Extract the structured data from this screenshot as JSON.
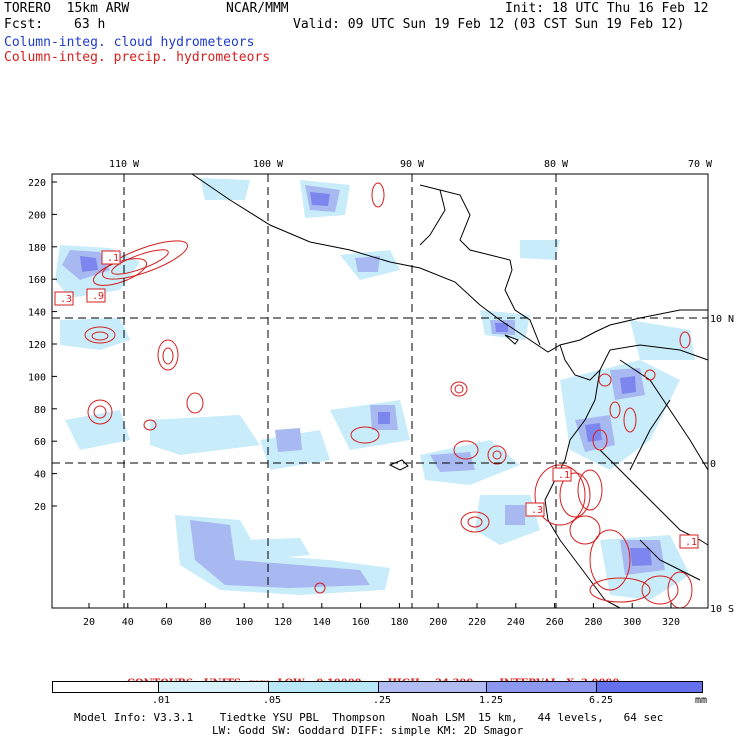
{
  "header": {
    "model": "TORERO  15km ARW",
    "center": "NCAR/MMM",
    "init": "Init: 18 UTC Thu 16 Feb 12",
    "fcst_label": "Fcst:",
    "fcst_value": "63 h",
    "valid": "Valid: 09 UTC Sun 19 Feb 12 (03 CST Sun 19 Feb 12)",
    "field1": "Column-integ. cloud hydrometeors",
    "field2": "Column-integ. precip. hydrometeors"
  },
  "map": {
    "lon_labels": [
      "110 W",
      "100 W",
      "90 W",
      "80 W",
      "70 W"
    ],
    "lat_labels": [
      "10 N",
      "0",
      "10 S"
    ],
    "y_ticks": [
      "220",
      "200",
      "180",
      "160",
      "140",
      "120",
      "100",
      "80",
      "60",
      "40",
      "20"
    ],
    "x_ticks": [
      "20",
      "40",
      "60",
      "80",
      "100",
      "120",
      "140",
      "160",
      "180",
      "200",
      "220",
      "240",
      "260",
      "280",
      "300",
      "320"
    ],
    "contour_labels": [
      ".1",
      ".3",
      ".9",
      ".1",
      ".3",
      ".1"
    ],
    "colors": {
      "cloud_light": "#c8ecfa",
      "cloud_mid": "#a8b8f0",
      "cloud_dark": "#7c86ee",
      "precip": "#d61e1e",
      "land": "#000000"
    }
  },
  "contours_line": {
    "c1": "CONTOURS:  UNITS=mm  LOW= 0.10000",
    "c2": "HIGH=  24.300",
    "c3": "INTERVAL=X  3.0000"
  },
  "colorbar": {
    "labels": [
      ".01",
      ".05",
      ".25",
      "1.25",
      "6.25"
    ],
    "unit": "mm",
    "colors": [
      "#ffffff",
      "#d8f2fc",
      "#b8e8f8",
      "#b0bcf2",
      "#8c98f0",
      "#6470ec",
      "#3038e6"
    ]
  },
  "footer": {
    "line1": "Model Info: V3.3.1    Tiedtke YSU PBL  Thompson    Noah LSM  15 km,   44 levels,   64 sec",
    "line2": "LW: Godd SW: Goddard DIFF: simple KM: 2D Smagor"
  }
}
